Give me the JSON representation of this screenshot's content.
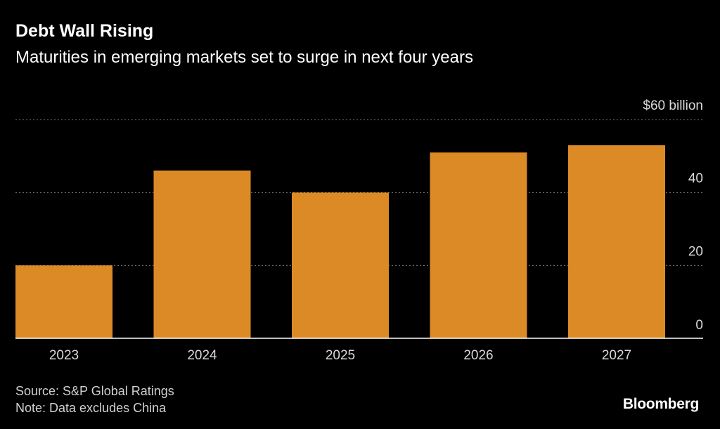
{
  "header": {
    "title": "Debt Wall Rising",
    "subtitle": "Maturities in emerging markets set to surge in next four years"
  },
  "footer": {
    "source": "Source: S&P Global Ratings",
    "note": "Note: Data excludes China",
    "brand": "Bloomberg"
  },
  "colors": {
    "bar": "#DB8A26",
    "background": "#000000",
    "grid": "#7a7a7a"
  },
  "chart_data": {
    "type": "bar",
    "title": "Debt Wall Rising",
    "subtitle": "Maturities in emerging markets set to surge in next four years",
    "categories": [
      "2023",
      "2024",
      "2025",
      "2026",
      "2027"
    ],
    "values": [
      20,
      46,
      40,
      51,
      53
    ],
    "unit_label": "$60 billion",
    "yticks": [
      0,
      20,
      40,
      60
    ],
    "ytick_labels": [
      "0",
      "20",
      "40",
      "$60 billion"
    ],
    "ylim": [
      0,
      60
    ],
    "xlabel": "",
    "ylabel": "",
    "grid": true,
    "legend": "none"
  }
}
